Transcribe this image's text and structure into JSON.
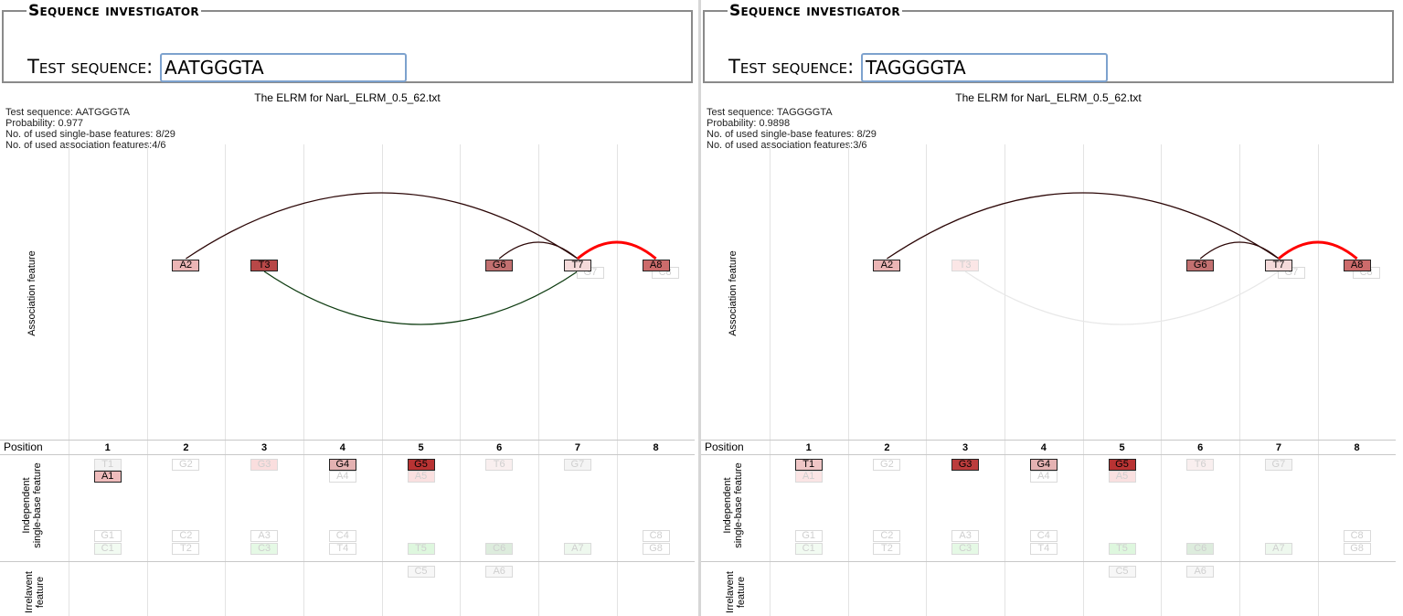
{
  "colors": {
    "red_strong": "#ff0000",
    "dark_red": "#2b0606",
    "dark_green": "#0f3d12",
    "faint_gray": "#e8e8e8",
    "input_border": "#7da2ce"
  },
  "panels": [
    {
      "section_title": "Sequence investigator",
      "test_label": "Test sequence:",
      "input_value": "AATGGGTA",
      "elrm_title": "The ELRM for NarL_ELRM_0.5_62.txt",
      "info": [
        "Test sequence: AATGGGTA",
        "Probability: 0.977",
        "No. of used single-base features: 8/29",
        "No. of used association features:4/6"
      ],
      "labels": {
        "assoc": "Association feature",
        "position": "Position",
        "ind_line1": "Independent",
        "ind_line2": "single-base feature",
        "irr_line1": "Irrelavent",
        "irr_line2": "feature"
      },
      "positions": [
        "1",
        "2",
        "3",
        "4",
        "5",
        "6",
        "7",
        "8"
      ],
      "assoc_boxes": [
        {
          "label": "A2",
          "pos": 2,
          "level": "strong",
          "fill": "#ebb5b5"
        },
        {
          "label": "T3",
          "pos": 3,
          "level": "strong",
          "fill": "#b84848"
        },
        {
          "label": "G6",
          "pos": 6,
          "level": "strong",
          "fill": "#c27070"
        },
        {
          "label": "T7",
          "pos": 7,
          "level": "strong",
          "fill": "#f4dada"
        },
        {
          "label": "A8",
          "pos": 8,
          "level": "strong",
          "fill": "#cc6b6b"
        }
      ],
      "assoc_arcs": [
        {
          "from": 2,
          "to": 7,
          "side": "up",
          "height": 72,
          "color": "#2b0606",
          "width": 1.3
        },
        {
          "from": 6,
          "to": 7,
          "side": "up",
          "height": 18,
          "color": "#2b0606",
          "width": 1.3
        },
        {
          "from": 7,
          "to": 8,
          "side": "up",
          "height": 18,
          "color": "#ff0000",
          "width": 3
        },
        {
          "from": 3,
          "to": 7,
          "side": "down",
          "height": 58,
          "color": "#0f3d12",
          "width": 1.3
        }
      ],
      "ind_top": [
        {
          "label": "T1",
          "pos": 1,
          "row": 0,
          "level": "faint",
          "fill": "#f3f3f3"
        },
        {
          "label": "A1",
          "pos": 1,
          "row": 1,
          "level": "strong",
          "fill": "#efbcbc"
        },
        {
          "label": "G2",
          "pos": 2,
          "row": 0,
          "level": "faint",
          "fill": "#ffffff"
        },
        {
          "label": "G3",
          "pos": 3,
          "row": 0,
          "level": "faint",
          "fill": "#fadede"
        },
        {
          "label": "G4",
          "pos": 4,
          "row": 0,
          "level": "strong",
          "fill": "#e4b2b2"
        },
        {
          "label": "A4",
          "pos": 4,
          "row": 1,
          "level": "faint",
          "fill": "#ffffff"
        },
        {
          "label": "G5",
          "pos": 5,
          "row": 0,
          "level": "strong",
          "fill": "#b83333"
        },
        {
          "label": "A5",
          "pos": 5,
          "row": 1,
          "level": "faint",
          "fill": "#fae0e0"
        },
        {
          "label": "T6",
          "pos": 6,
          "row": 0,
          "level": "faint",
          "fill": "#f9efef"
        },
        {
          "label": "G7",
          "pos": 7,
          "row": 0,
          "level": "faint",
          "fill": "#f4f4f4"
        }
      ],
      "ind_bottom": [
        {
          "label": "G1",
          "pos": 1,
          "row": 0,
          "fill": "#ffffff"
        },
        {
          "label": "C1",
          "pos": 1,
          "row": 1,
          "fill": "#f2fbf2"
        },
        {
          "label": "C2",
          "pos": 2,
          "row": 0,
          "fill": "#ffffff"
        },
        {
          "label": "T2",
          "pos": 2,
          "row": 1,
          "fill": "#ffffff"
        },
        {
          "label": "A3",
          "pos": 3,
          "row": 0,
          "fill": "#ffffff"
        },
        {
          "label": "C3",
          "pos": 3,
          "row": 1,
          "fill": "#e5f9e5"
        },
        {
          "label": "C4",
          "pos": 4,
          "row": 0,
          "fill": "#ffffff"
        },
        {
          "label": "T4",
          "pos": 4,
          "row": 1,
          "fill": "#ffffff"
        },
        {
          "label": "T5",
          "pos": 5,
          "row": 1,
          "fill": "#def7de"
        },
        {
          "label": "C6",
          "pos": 6,
          "row": 1,
          "fill": "#ddecdd"
        },
        {
          "label": "A7",
          "pos": 7,
          "row": 1,
          "fill": "#eef8ee"
        },
        {
          "label": "C8",
          "pos": 8,
          "row": 0,
          "fill": "#ffffff"
        },
        {
          "label": "G8",
          "pos": 8,
          "row": 1,
          "fill": "#ffffff"
        }
      ],
      "irr": [
        {
          "label": "C5",
          "pos": 5,
          "fill": "#f7f7f7"
        },
        {
          "label": "A6",
          "pos": 6,
          "fill": "#f7f7f7"
        }
      ]
    },
    {
      "section_title": "Sequence investigator",
      "test_label": "Test sequence:",
      "input_value": "TAGGGGTA",
      "elrm_title": "The ELRM for NarL_ELRM_0.5_62.txt",
      "info": [
        "Test sequence: TAGGGGTA",
        "Probability: 0.9898",
        "No. of used single-base features: 8/29",
        "No. of used association features:3/6"
      ],
      "labels": {
        "assoc": "Association feature",
        "position": "Position",
        "ind_line1": "Independent",
        "ind_line2": "single-base feature",
        "irr_line1": "Irrelavent",
        "irr_line2": "feature"
      },
      "positions": [
        "1",
        "2",
        "3",
        "4",
        "5",
        "6",
        "7",
        "8"
      ],
      "assoc_boxes": [
        {
          "label": "A2",
          "pos": 2,
          "level": "strong",
          "fill": "#ebb5b5"
        },
        {
          "label": "T3",
          "pos": 3,
          "level": "faint",
          "fill": "#fbe6e6"
        },
        {
          "label": "G6",
          "pos": 6,
          "level": "strong",
          "fill": "#c27070"
        },
        {
          "label": "T7",
          "pos": 7,
          "level": "strong",
          "fill": "#f4dada"
        },
        {
          "label": "A8",
          "pos": 8,
          "level": "strong",
          "fill": "#cc6b6b"
        }
      ],
      "assoc_arcs": [
        {
          "from": 2,
          "to": 7,
          "side": "up",
          "height": 72,
          "color": "#2b0606",
          "width": 1.3
        },
        {
          "from": 6,
          "to": 7,
          "side": "up",
          "height": 18,
          "color": "#2b0606",
          "width": 1.3
        },
        {
          "from": 7,
          "to": 8,
          "side": "up",
          "height": 18,
          "color": "#ff0000",
          "width": 3
        },
        {
          "from": 3,
          "to": 7,
          "side": "down",
          "height": 58,
          "color": "#e8e8e8",
          "width": 1.3
        }
      ],
      "ind_top": [
        {
          "label": "T1",
          "pos": 1,
          "row": 0,
          "level": "strong",
          "fill": "#efc6c6"
        },
        {
          "label": "A1",
          "pos": 1,
          "row": 1,
          "level": "faint",
          "fill": "#fbe5e5"
        },
        {
          "label": "G2",
          "pos": 2,
          "row": 0,
          "level": "faint",
          "fill": "#ffffff"
        },
        {
          "label": "G3",
          "pos": 3,
          "row": 0,
          "level": "strong",
          "fill": "#bb3c3c"
        },
        {
          "label": "G4",
          "pos": 4,
          "row": 0,
          "level": "strong",
          "fill": "#e4b2b2"
        },
        {
          "label": "A4",
          "pos": 4,
          "row": 1,
          "level": "faint",
          "fill": "#ffffff"
        },
        {
          "label": "G5",
          "pos": 5,
          "row": 0,
          "level": "strong",
          "fill": "#b83333"
        },
        {
          "label": "A5",
          "pos": 5,
          "row": 1,
          "level": "faint",
          "fill": "#fae0e0"
        },
        {
          "label": "T6",
          "pos": 6,
          "row": 0,
          "level": "faint",
          "fill": "#f9efef"
        },
        {
          "label": "G7",
          "pos": 7,
          "row": 0,
          "level": "faint",
          "fill": "#f4f4f4"
        }
      ],
      "ind_bottom": [
        {
          "label": "G1",
          "pos": 1,
          "row": 0,
          "fill": "#ffffff"
        },
        {
          "label": "C1",
          "pos": 1,
          "row": 1,
          "fill": "#f2fbf2"
        },
        {
          "label": "C2",
          "pos": 2,
          "row": 0,
          "fill": "#ffffff"
        },
        {
          "label": "T2",
          "pos": 2,
          "row": 1,
          "fill": "#ffffff"
        },
        {
          "label": "A3",
          "pos": 3,
          "row": 0,
          "fill": "#ffffff"
        },
        {
          "label": "C3",
          "pos": 3,
          "row": 1,
          "fill": "#e5f9e5"
        },
        {
          "label": "C4",
          "pos": 4,
          "row": 0,
          "fill": "#ffffff"
        },
        {
          "label": "T4",
          "pos": 4,
          "row": 1,
          "fill": "#ffffff"
        },
        {
          "label": "T5",
          "pos": 5,
          "row": 1,
          "fill": "#def7de"
        },
        {
          "label": "C6",
          "pos": 6,
          "row": 1,
          "fill": "#ddecdd"
        },
        {
          "label": "A7",
          "pos": 7,
          "row": 1,
          "fill": "#eef8ee"
        },
        {
          "label": "C8",
          "pos": 8,
          "row": 0,
          "fill": "#ffffff"
        },
        {
          "label": "G8",
          "pos": 8,
          "row": 1,
          "fill": "#ffffff"
        }
      ],
      "irr": [
        {
          "label": "C5",
          "pos": 5,
          "fill": "#f7f7f7"
        },
        {
          "label": "A6",
          "pos": 6,
          "fill": "#f7f7f7"
        }
      ]
    }
  ]
}
